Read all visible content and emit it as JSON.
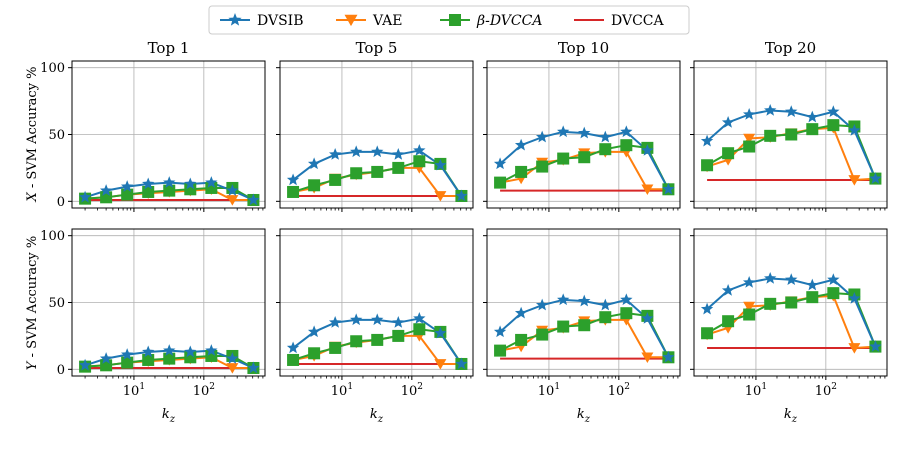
{
  "legend": [
    {
      "key": "dvsib",
      "label": "DVSIB",
      "color": "#1f77b4",
      "marker": "star"
    },
    {
      "key": "vae",
      "label": "VAE",
      "color": "#ff7f0e",
      "marker": "triangle-down"
    },
    {
      "key": "bdvcca",
      "label": "β-DVCCA",
      "color": "#2ca02c",
      "marker": "square"
    },
    {
      "key": "dvcca",
      "label": "DVCCA",
      "color": "#d62728",
      "marker": "none"
    }
  ],
  "chart_data": {
    "type": "line",
    "grid": true,
    "xscale": "log",
    "xlim": [
      1.3,
      750
    ],
    "ylim": [
      -5,
      105
    ],
    "xticks": [
      {
        "value": 10,
        "base": "10",
        "exp": "1"
      },
      {
        "value": 100,
        "base": "10",
        "exp": "2"
      }
    ],
    "yticks": [
      0,
      50,
      100
    ],
    "xlabel": {
      "main": "k",
      "sub": "z"
    },
    "row_labels": [
      {
        "var": "X",
        "rest": " - SVM Accuracy %"
      },
      {
        "var": "Y",
        "rest": " - SVM Accuracy %"
      }
    ],
    "x": [
      2,
      4,
      8,
      16,
      32,
      64,
      128,
      256,
      512
    ],
    "panels": [
      {
        "title": "Top 1",
        "series": {
          "dvsib": [
            3,
            8,
            11,
            13,
            14,
            13,
            14,
            8,
            1
          ],
          "vae": [
            2,
            3,
            5,
            6,
            7,
            8,
            9,
            1,
            1
          ],
          "bdvcca": [
            2,
            3,
            5,
            7,
            8,
            9,
            10,
            10,
            1
          ],
          "dvcca": [
            1,
            1,
            1,
            1,
            1,
            1,
            1,
            1,
            1
          ]
        }
      },
      {
        "title": "Top 5",
        "series": {
          "dvsib": [
            16,
            28,
            35,
            37,
            37,
            35,
            38,
            27,
            4
          ],
          "vae": [
            7,
            10,
            17,
            20,
            22,
            25,
            25,
            4,
            4
          ],
          "bdvcca": [
            7,
            12,
            16,
            21,
            22,
            25,
            30,
            28,
            4
          ],
          "dvcca": [
            4,
            4,
            4,
            4,
            4,
            4,
            4,
            4,
            4
          ]
        }
      },
      {
        "title": "Top 10",
        "series": {
          "dvsib": [
            28,
            42,
            48,
            52,
            51,
            48,
            52,
            38,
            9
          ],
          "vae": [
            14,
            17,
            29,
            31,
            36,
            37,
            37,
            9,
            9
          ],
          "bdvcca": [
            14,
            22,
            26,
            32,
            33,
            39,
            42,
            40,
            9
          ],
          "dvcca": [
            8,
            8,
            8,
            8,
            8,
            8,
            8,
            8,
            8
          ]
        }
      },
      {
        "title": "Top 20",
        "series": {
          "dvsib": [
            45,
            59,
            65,
            68,
            67,
            63,
            67,
            53,
            17
          ],
          "vae": [
            26,
            31,
            47,
            48,
            51,
            54,
            55,
            16,
            17
          ],
          "bdvcca": [
            27,
            36,
            41,
            49,
            50,
            54,
            57,
            56,
            17
          ],
          "dvcca": [
            16,
            16,
            16,
            16,
            16,
            16,
            16,
            16,
            16
          ]
        }
      }
    ]
  }
}
